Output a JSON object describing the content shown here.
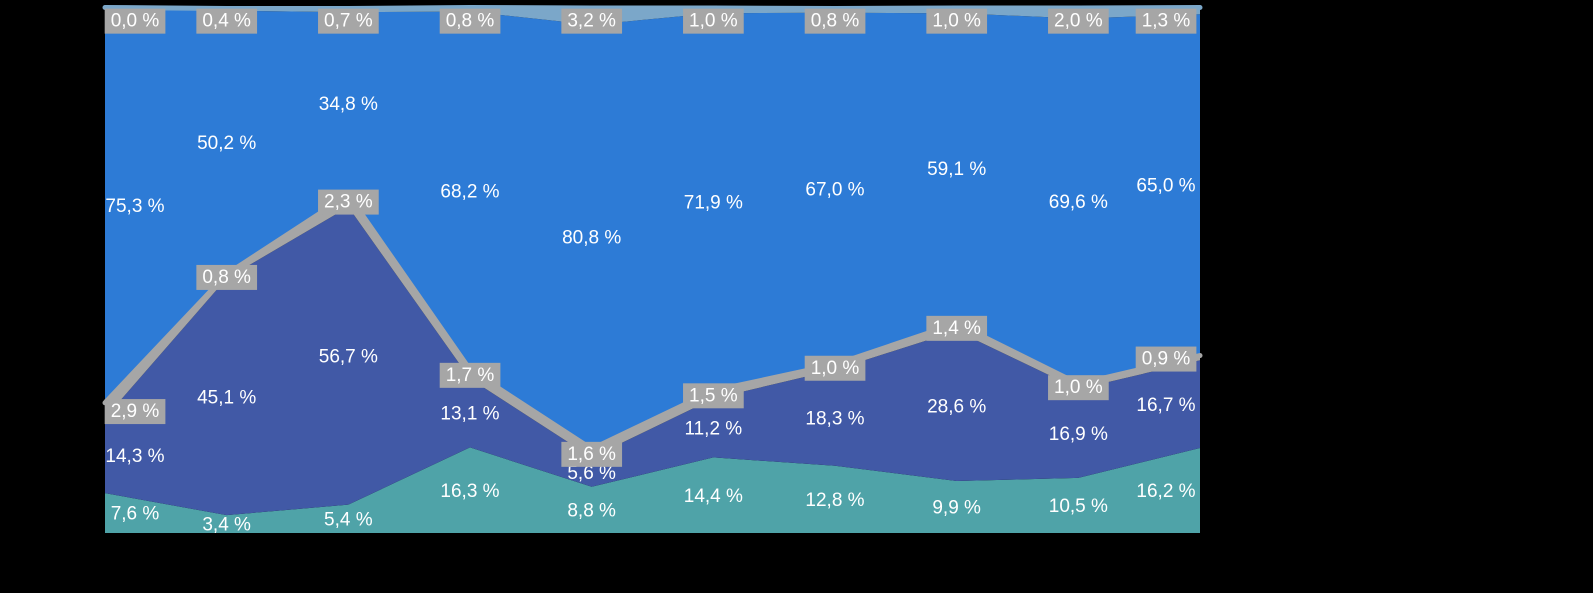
{
  "page": {
    "background": "#000000"
  },
  "chart_data": {
    "type": "area",
    "stacked": "percent",
    "title": "",
    "legend_visible": false,
    "x_axis_labels_visible": false,
    "y_axis_labels_visible": false,
    "n_points": 10,
    "ylim": [
      0,
      100
    ],
    "decimal_separator": ",",
    "label_suffix": " %",
    "label_text_color": "#FFFFFF",
    "label_box_color": "#A6A6A6",
    "series_top_to_bottom": [
      {
        "name": "top-light-band",
        "color": "#7BA7C9",
        "boxed_labels": true,
        "edge_line": true,
        "values": [
          0.0,
          0.4,
          0.7,
          0.8,
          3.2,
          1.0,
          0.8,
          1.0,
          2.0,
          1.3
        ]
      },
      {
        "name": "main-blue-band",
        "color": "#2D7BD6",
        "boxed_labels": false,
        "edge_line": false,
        "values": [
          75.3,
          50.2,
          34.8,
          68.2,
          80.8,
          71.9,
          67.0,
          59.1,
          69.6,
          65.0
        ]
      },
      {
        "name": "gray-band",
        "color": "#A6A6A6",
        "boxed_labels": true,
        "edge_line": true,
        "values": [
          2.9,
          0.8,
          2.3,
          1.7,
          1.6,
          1.5,
          1.0,
          1.4,
          1.0,
          0.9
        ]
      },
      {
        "name": "indigo-band",
        "color": "#4159A6",
        "boxed_labels": false,
        "edge_line": false,
        "values": [
          14.3,
          45.1,
          56.7,
          13.1,
          5.6,
          11.2,
          18.3,
          28.6,
          16.9,
          16.7
        ]
      },
      {
        "name": "teal-band",
        "color": "#4FA3A8",
        "boxed_labels": false,
        "edge_line": false,
        "values": [
          7.6,
          3.4,
          5.4,
          16.3,
          8.8,
          14.4,
          12.8,
          9.9,
          10.5,
          16.2
        ]
      }
    ]
  }
}
